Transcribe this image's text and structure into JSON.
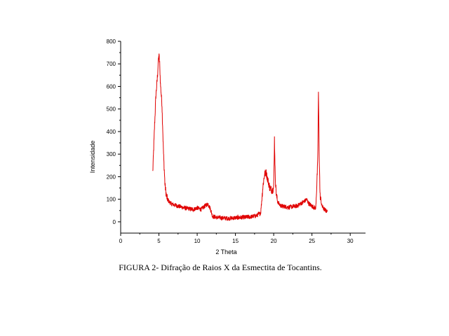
{
  "chart_data": {
    "type": "line",
    "xlabel": "2 Theta",
    "ylabel": "Intensidade",
    "xlim": [
      0,
      32
    ],
    "ylim": [
      -50,
      800
    ],
    "xticks": [
      0,
      5,
      10,
      15,
      20,
      25,
      30
    ],
    "yticks": [
      0,
      100,
      200,
      300,
      400,
      500,
      600,
      700,
      800
    ],
    "grid": false,
    "line_color": "#e00000",
    "series": [
      {
        "x": [
          4.2,
          4.4,
          4.6,
          4.8,
          4.9,
          5.0,
          5.1,
          5.2,
          5.4,
          5.6,
          5.8,
          6.0,
          6.3,
          6.6,
          7.0,
          7.5,
          8.0,
          8.5,
          9.0,
          9.5,
          10.0,
          10.5,
          11.0,
          11.4,
          11.7,
          12.0,
          12.5,
          13.0,
          14.0,
          15.0,
          16.0,
          17.0,
          17.8,
          18.3,
          18.6,
          18.8,
          19.0,
          19.2,
          19.5,
          19.8,
          20.0,
          20.1,
          20.2,
          20.35,
          20.5,
          20.8,
          21.0,
          22.0,
          23.0,
          23.5,
          24.0,
          24.3,
          24.6,
          25.0,
          25.5,
          25.75,
          25.85,
          25.95,
          26.05,
          26.3,
          26.6,
          27.0
        ],
        "y": [
          220,
          400,
          560,
          640,
          700,
          740,
          700,
          610,
          520,
          300,
          160,
          110,
          90,
          80,
          75,
          70,
          65,
          60,
          58,
          55,
          62,
          55,
          70,
          80,
          60,
          25,
          20,
          18,
          15,
          18,
          20,
          22,
          28,
          40,
          160,
          210,
          220,
          190,
          150,
          140,
          150,
          370,
          200,
          120,
          90,
          75,
          70,
          65,
          70,
          80,
          90,
          100,
          80,
          70,
          60,
          260,
          575,
          300,
          120,
          70,
          55,
          45
        ]
      }
    ]
  },
  "caption": "FIGURA 2- Difração de Raios X da Esmectita de Tocantins."
}
